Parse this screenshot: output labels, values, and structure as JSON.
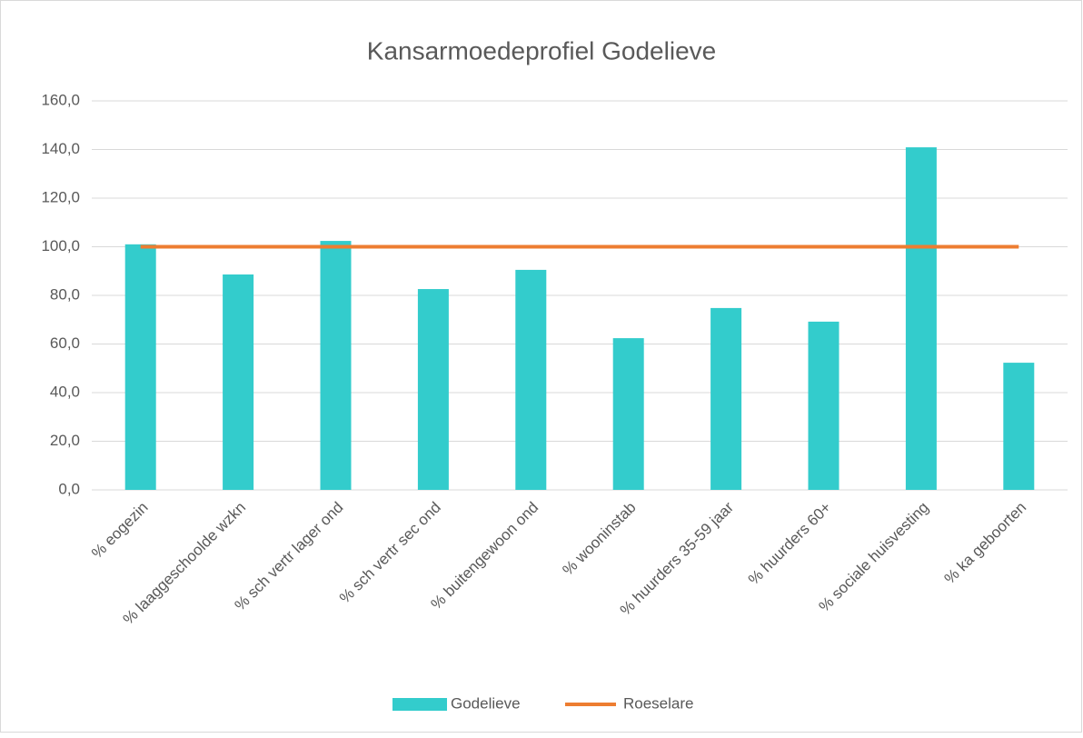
{
  "chart_data": {
    "type": "bar",
    "title": "Kansarmoedeprofiel Godelieve",
    "categories": [
      "% eogezin",
      "% laaggeschoolde wzkn",
      "% sch vertr lager ond",
      "% sch vertr sec ond",
      "% buitengewoon ond",
      "% wooninstab",
      "% huurders 35-59 jaar",
      "% huurders 60+",
      "% sociale huisvesting",
      "% ka geboorten"
    ],
    "series": [
      {
        "name": "Godelieve",
        "type": "bar",
        "color": "#33cccc",
        "values": [
          101.0,
          88.6,
          102.4,
          82.6,
          90.5,
          62.4,
          74.8,
          69.2,
          140.9,
          52.3
        ]
      },
      {
        "name": "Roeselare",
        "type": "line",
        "color": "#ed7d31",
        "values": [
          100,
          100,
          100,
          100,
          100,
          100,
          100,
          100,
          100,
          100
        ]
      }
    ],
    "ylim": [
      0,
      160
    ],
    "yticks": [
      {
        "value": 0,
        "label": "0,0"
      },
      {
        "value": 20,
        "label": "20,0"
      },
      {
        "value": 40,
        "label": "40,0"
      },
      {
        "value": 60,
        "label": "60,0"
      },
      {
        "value": 80,
        "label": "80,0"
      },
      {
        "value": 100,
        "label": "100,0"
      },
      {
        "value": 120,
        "label": "120,0"
      },
      {
        "value": 140,
        "label": "140,0"
      },
      {
        "value": 160,
        "label": "160,0"
      }
    ],
    "grid": true,
    "legend": "bottom"
  }
}
